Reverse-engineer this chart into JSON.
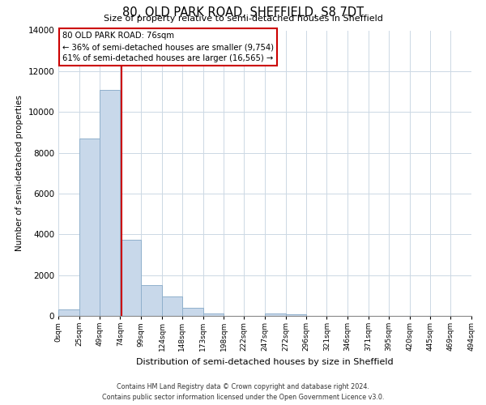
{
  "title": "80, OLD PARK ROAD, SHEFFIELD, S8 7DT",
  "subtitle": "Size of property relative to semi-detached houses in Sheffield",
  "xlabel": "Distribution of semi-detached houses by size in Sheffield",
  "ylabel": "Number of semi-detached properties",
  "bin_edges": [
    0,
    25,
    49,
    74,
    99,
    124,
    148,
    173,
    198,
    222,
    247,
    272,
    296,
    321,
    346,
    371,
    395,
    420,
    445,
    469,
    494
  ],
  "bin_labels": [
    "0sqm",
    "25sqm",
    "49sqm",
    "74sqm",
    "99sqm",
    "124sqm",
    "148sqm",
    "173sqm",
    "198sqm",
    "222sqm",
    "247sqm",
    "272sqm",
    "296sqm",
    "321sqm",
    "346sqm",
    "371sqm",
    "395sqm",
    "420sqm",
    "445sqm",
    "469sqm",
    "494sqm"
  ],
  "bar_heights": [
    300,
    8700,
    11100,
    3750,
    1500,
    950,
    380,
    130,
    0,
    0,
    130,
    70,
    0,
    0,
    0,
    0,
    0,
    0,
    0,
    0
  ],
  "bar_color": "#c8d8ea",
  "bar_edgecolor": "#90b0cc",
  "property_line_x": 76,
  "property_line_color": "#cc0000",
  "annotation_title": "80 OLD PARK ROAD: 76sqm",
  "annotation_line1": "← 36% of semi-detached houses are smaller (9,754)",
  "annotation_line2": "61% of semi-detached houses are larger (16,565) →",
  "annotation_box_color": "#ffffff",
  "annotation_box_edgecolor": "#cc0000",
  "ylim": [
    0,
    14000
  ],
  "yticks": [
    0,
    2000,
    4000,
    6000,
    8000,
    10000,
    12000,
    14000
  ],
  "footer_line1": "Contains HM Land Registry data © Crown copyright and database right 2024.",
  "footer_line2": "Contains public sector information licensed under the Open Government Licence v3.0.",
  "background_color": "#ffffff",
  "grid_color": "#ccd8e4"
}
